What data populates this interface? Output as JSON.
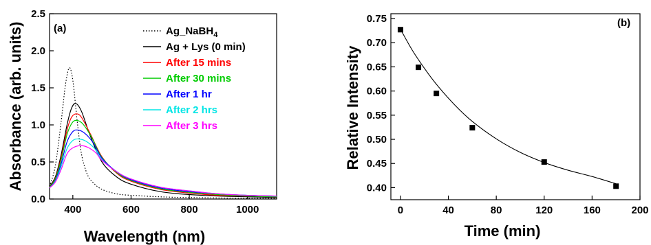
{
  "chart_data": [
    {
      "type": "line",
      "panel_label": "(a)",
      "xlabel": "Wavelength (nm)",
      "ylabel": "Absorbance (arb. units)",
      "xlim": [
        320,
        1100
      ],
      "ylim": [
        0.0,
        2.5
      ],
      "xticks": [
        "400",
        "600",
        "800",
        "1000"
      ],
      "yticks": [
        "0.0",
        "0.5",
        "1.0",
        "1.5",
        "2.0",
        "2.5"
      ],
      "legend_position": "top-right",
      "series": [
        {
          "name": "Ag_NaBH4",
          "color": "#000000",
          "dash": "dotted",
          "x": [
            320,
            340,
            360,
            375,
            388,
            400,
            415,
            430,
            450,
            470,
            500,
            550,
            600,
            700,
            800,
            1000,
            1100
          ],
          "y": [
            0.17,
            0.45,
            1.05,
            1.55,
            1.77,
            1.6,
            1.05,
            0.6,
            0.33,
            0.22,
            0.13,
            0.07,
            0.05,
            0.03,
            0.02,
            0.01,
            0.01
          ]
        },
        {
          "name": "Ag + Lys (0 min)",
          "color": "#000000",
          "dash": "solid",
          "x": [
            320,
            340,
            360,
            380,
            395,
            410,
            430,
            460,
            500,
            550,
            600,
            700,
            800,
            900,
            1000,
            1100
          ],
          "y": [
            0.17,
            0.3,
            0.6,
            1.0,
            1.22,
            1.29,
            1.18,
            0.85,
            0.5,
            0.3,
            0.2,
            0.1,
            0.06,
            0.04,
            0.03,
            0.02
          ]
        },
        {
          "name": "After 15 mins",
          "color": "#ff0000",
          "dash": "solid",
          "x": [
            320,
            340,
            360,
            380,
            395,
            412,
            430,
            460,
            500,
            550,
            600,
            700,
            800,
            900,
            1000,
            1100
          ],
          "y": [
            0.16,
            0.28,
            0.56,
            0.93,
            1.1,
            1.15,
            1.1,
            0.88,
            0.57,
            0.35,
            0.24,
            0.13,
            0.08,
            0.05,
            0.04,
            0.03
          ]
        },
        {
          "name": "After 30 mins",
          "color": "#00cc00",
          "dash": "solid",
          "x": [
            320,
            340,
            360,
            380,
            398,
            415,
            435,
            465,
            500,
            550,
            600,
            700,
            800,
            900,
            1000,
            1100
          ],
          "y": [
            0.16,
            0.27,
            0.53,
            0.87,
            1.03,
            1.06,
            1.01,
            0.83,
            0.56,
            0.36,
            0.25,
            0.14,
            0.09,
            0.06,
            0.04,
            0.03
          ]
        },
        {
          "name": "After 1 hr",
          "color": "#0000ff",
          "dash": "solid",
          "x": [
            320,
            340,
            360,
            380,
            400,
            418,
            440,
            470,
            500,
            550,
            600,
            700,
            800,
            900,
            1000,
            1100
          ],
          "y": [
            0.15,
            0.25,
            0.48,
            0.77,
            0.91,
            0.93,
            0.89,
            0.76,
            0.55,
            0.37,
            0.26,
            0.15,
            0.1,
            0.07,
            0.05,
            0.04
          ]
        },
        {
          "name": "After 2 hrs",
          "color": "#00e5e5",
          "dash": "solid",
          "x": [
            320,
            340,
            360,
            380,
            400,
            420,
            445,
            475,
            500,
            550,
            600,
            700,
            800,
            900,
            1000,
            1100
          ],
          "y": [
            0.15,
            0.24,
            0.44,
            0.68,
            0.79,
            0.81,
            0.78,
            0.68,
            0.53,
            0.37,
            0.27,
            0.16,
            0.11,
            0.07,
            0.05,
            0.04
          ]
        },
        {
          "name": "After 3 hrs",
          "color": "#ff00ff",
          "dash": "solid",
          "x": [
            320,
            340,
            360,
            380,
            400,
            425,
            450,
            480,
            500,
            550,
            600,
            700,
            800,
            900,
            1000,
            1100
          ],
          "y": [
            0.15,
            0.23,
            0.4,
            0.61,
            0.69,
            0.72,
            0.7,
            0.62,
            0.52,
            0.37,
            0.27,
            0.16,
            0.11,
            0.07,
            0.05,
            0.04
          ]
        }
      ]
    },
    {
      "type": "scatter",
      "panel_label": "(b)",
      "xlabel": "Time (min)",
      "ylabel": "Relative Intensity",
      "xlim": [
        -8,
        200
      ],
      "ylim": [
        0.375,
        0.76
      ],
      "xticks": [
        "0",
        "40",
        "80",
        "120",
        "160",
        "200"
      ],
      "yticks": [
        "0.40",
        "0.45",
        "0.50",
        "0.55",
        "0.60",
        "0.65",
        "0.70",
        "0.75"
      ],
      "points": {
        "x": [
          0,
          15,
          30,
          60,
          120,
          180
        ],
        "y": [
          0.727,
          0.649,
          0.595,
          0.524,
          0.453,
          0.403
        ]
      },
      "fit": {
        "x": [
          0,
          10,
          20,
          30,
          45,
          60,
          80,
          100,
          120,
          140,
          160,
          180
        ],
        "y": [
          0.728,
          0.684,
          0.647,
          0.614,
          0.572,
          0.537,
          0.501,
          0.473,
          0.452,
          0.436,
          0.423,
          0.408
        ]
      }
    }
  ]
}
